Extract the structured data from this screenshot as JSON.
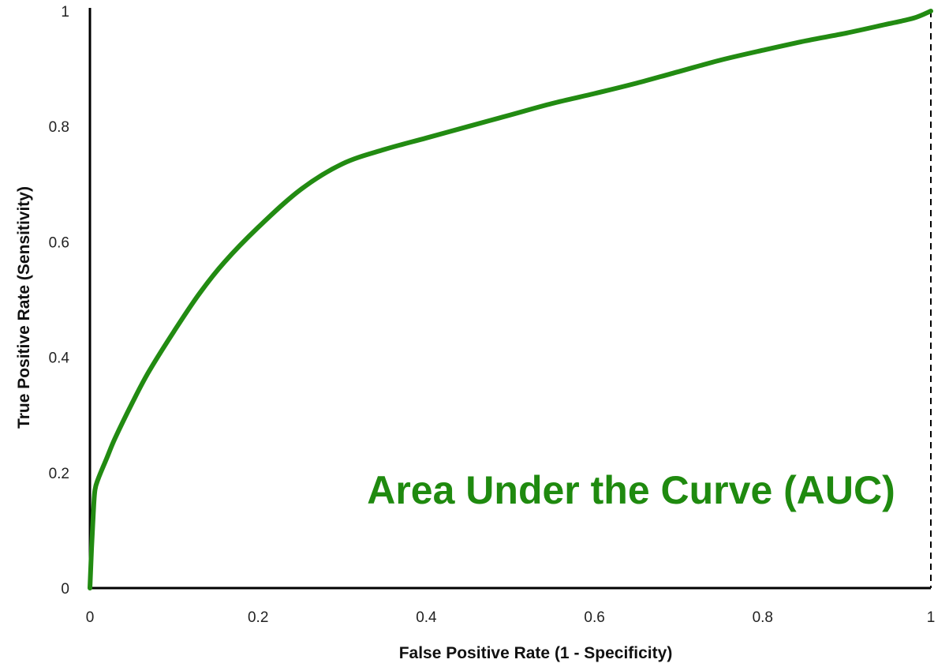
{
  "chart_data": {
    "type": "line",
    "title": "",
    "xlabel": "False Positive Rate (1 - Specificity)",
    "ylabel": "True Positive Rate (Sensitivity)",
    "xlim": [
      0,
      1
    ],
    "ylim": [
      0,
      1
    ],
    "x_ticks": [
      "0",
      "0.2",
      "0.4",
      "0.6",
      "0.8",
      "1"
    ],
    "y_ticks": [
      "0",
      "0.2",
      "0.4",
      "0.6",
      "0.8",
      "1"
    ],
    "grid": false,
    "annotation": "Area Under the Curve (AUC)",
    "series": [
      {
        "x": [
          0,
          0.002,
          0.004,
          0.006,
          0.01,
          0.02,
          0.03,
          0.05,
          0.07,
          0.1,
          0.13,
          0.16,
          0.2,
          0.25,
          0.3,
          0.35,
          0.4,
          0.45,
          0.5,
          0.55,
          0.6,
          0.65,
          0.7,
          0.75,
          0.8,
          0.85,
          0.9,
          0.95,
          0.98,
          1.0
        ],
        "y": [
          0,
          0.07,
          0.13,
          0.17,
          0.19,
          0.225,
          0.26,
          0.32,
          0.375,
          0.445,
          0.51,
          0.565,
          0.625,
          0.69,
          0.735,
          0.76,
          0.78,
          0.8,
          0.82,
          0.84,
          0.857,
          0.875,
          0.895,
          0.915,
          0.932,
          0.948,
          0.962,
          0.978,
          0.988,
          1.0
        ]
      }
    ],
    "colors": {
      "curve": "#228b12",
      "annotation": "#1f8a0f",
      "axis": "#000000"
    }
  }
}
